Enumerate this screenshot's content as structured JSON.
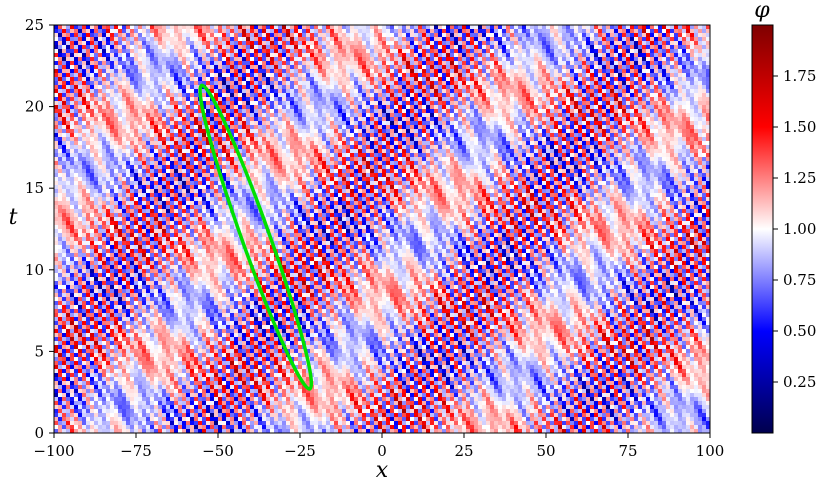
{
  "chart_data": {
    "type": "heatmap",
    "title": "",
    "xlabel": "x",
    "ylabel": "t",
    "xlim": [
      -100,
      100
    ],
    "ylim": [
      0,
      25
    ],
    "x_ticks": [
      -100,
      -75,
      -50,
      -25,
      0,
      25,
      50,
      75,
      100
    ],
    "x_tick_labels": [
      "−100",
      "−75",
      "−50",
      "−25",
      "0",
      "25",
      "50",
      "75",
      "100"
    ],
    "y_ticks": [
      0,
      5,
      10,
      15,
      20,
      25
    ],
    "y_tick_labels": [
      "0",
      "5",
      "10",
      "15",
      "20",
      "25"
    ],
    "colorbar": {
      "label": "φ",
      "range": [
        0,
        2
      ],
      "ticks": [
        0.25,
        0.5,
        0.75,
        1.0,
        1.25,
        1.5,
        1.75
      ],
      "tick_labels": [
        "0.25",
        "0.50",
        "0.75",
        "1.00",
        "1.25",
        "1.50",
        "1.75"
      ],
      "colormap": "seismic",
      "colors": [
        "#00004d",
        "#0000ff",
        "#ffffff",
        "#ff0000",
        "#7f0000"
      ]
    },
    "pattern": "diagonal travelling stripes drifting toward negative x with increasing t, alternating red (φ≈1.5–1.75) and blue (φ≈0.25–0.5)",
    "annotation": {
      "shape": "ellipse",
      "color": "#00e000",
      "center": [
        -38.5,
        12
      ],
      "semi_major_endpoints": [
        [
          -55,
          21.3
        ],
        [
          -22,
          2.7
        ]
      ],
      "semi_minor_half_width": 4.2
    }
  }
}
